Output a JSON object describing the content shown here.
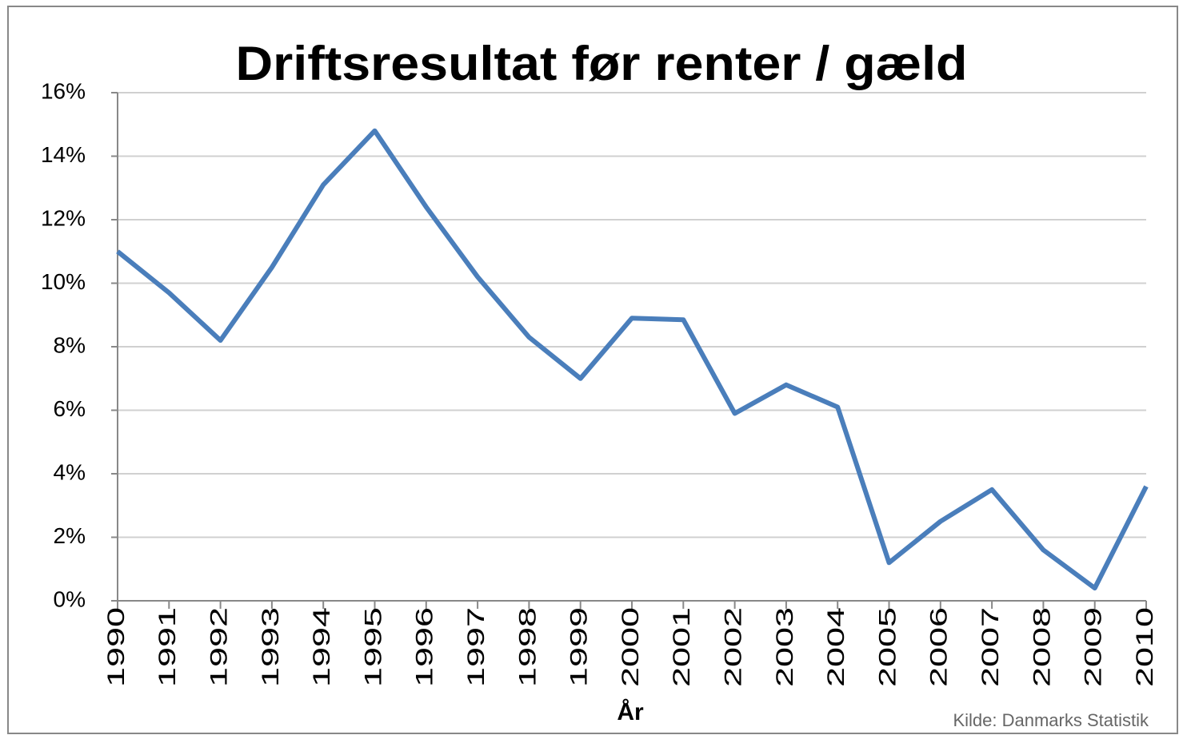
{
  "chart_data": {
    "type": "line",
    "title": "Driftsresultat før renter / gæld",
    "x_label": "År",
    "source": "Kilde: Danmarks Statistik",
    "categories": [
      "1990",
      "1991",
      "1992",
      "1993",
      "1994",
      "1995",
      "1996",
      "1997",
      "1998",
      "1999",
      "2000",
      "2001",
      "2002",
      "2003",
      "2004",
      "2005",
      "2006",
      "2007",
      "2008",
      "2009",
      "2010"
    ],
    "values": [
      11.0,
      9.7,
      8.2,
      10.5,
      13.1,
      14.8,
      12.4,
      10.2,
      8.3,
      7.0,
      8.9,
      8.85,
      5.9,
      6.8,
      6.1,
      1.2,
      2.5,
      3.5,
      1.6,
      0.4,
      3.6
    ],
    "color": "#4a7ebb",
    "ylim": [
      0,
      16
    ],
    "yticks": [
      {
        "value": 0,
        "label": "0%"
      },
      {
        "value": 2,
        "label": "2%"
      },
      {
        "value": 4,
        "label": "4%"
      },
      {
        "value": 6,
        "label": "6%"
      },
      {
        "value": 8,
        "label": "8%"
      },
      {
        "value": 10,
        "label": "10%"
      },
      {
        "value": 12,
        "label": "12%"
      },
      {
        "value": 14,
        "label": "14%"
      },
      {
        "value": 16,
        "label": "16%"
      }
    ],
    "grid": true
  }
}
